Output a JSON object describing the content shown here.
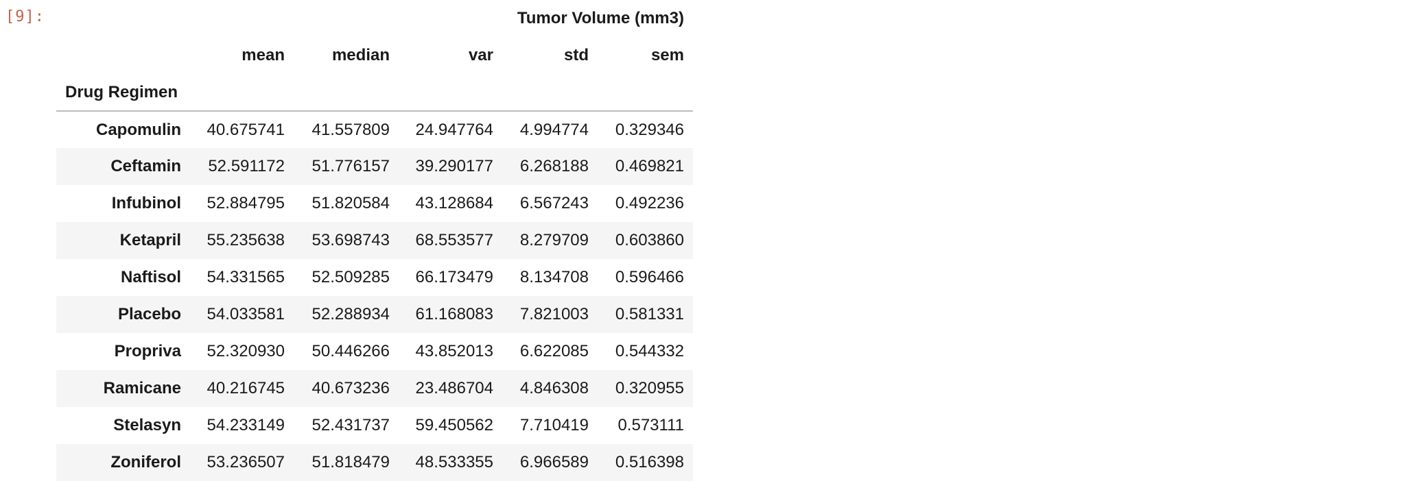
{
  "cell": {
    "prompt": "[9]:"
  },
  "table": {
    "group_header": "Tumor Volume (mm3)",
    "columns": [
      "mean",
      "median",
      "var",
      "std",
      "sem"
    ],
    "index_name": "Drug Regimen",
    "rows": [
      {
        "label": "Capomulin",
        "values": [
          "40.675741",
          "41.557809",
          "24.947764",
          "4.994774",
          "0.329346"
        ]
      },
      {
        "label": "Ceftamin",
        "values": [
          "52.591172",
          "51.776157",
          "39.290177",
          "6.268188",
          "0.469821"
        ]
      },
      {
        "label": "Infubinol",
        "values": [
          "52.884795",
          "51.820584",
          "43.128684",
          "6.567243",
          "0.492236"
        ]
      },
      {
        "label": "Ketapril",
        "values": [
          "55.235638",
          "53.698743",
          "68.553577",
          "8.279709",
          "0.603860"
        ]
      },
      {
        "label": "Naftisol",
        "values": [
          "54.331565",
          "52.509285",
          "66.173479",
          "8.134708",
          "0.596466"
        ]
      },
      {
        "label": "Placebo",
        "values": [
          "54.033581",
          "52.288934",
          "61.168083",
          "7.821003",
          "0.581331"
        ]
      },
      {
        "label": "Propriva",
        "values": [
          "52.320930",
          "50.446266",
          "43.852013",
          "6.622085",
          "0.544332"
        ]
      },
      {
        "label": "Ramicane",
        "values": [
          "40.216745",
          "40.673236",
          "23.486704",
          "4.846308",
          "0.320955"
        ]
      },
      {
        "label": "Stelasyn",
        "values": [
          "54.233149",
          "52.431737",
          "59.450562",
          "7.710419",
          "0.573111"
        ]
      },
      {
        "label": "Zoniferol",
        "values": [
          "53.236507",
          "51.818479",
          "48.533355",
          "6.966589",
          "0.516398"
        ]
      }
    ]
  }
}
